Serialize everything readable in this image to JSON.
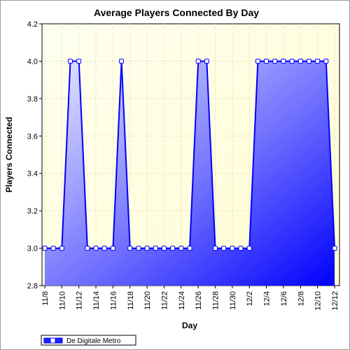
{
  "chart_data": {
    "type": "area",
    "title": "Average Players Connected By Day",
    "xlabel": "Day",
    "ylabel": "Players Connected",
    "ylim": [
      2.8,
      4.2
    ],
    "yticks": [
      "2.8",
      "3.0",
      "3.2",
      "3.4",
      "3.6",
      "3.8",
      "4.0",
      "4.2"
    ],
    "xticks": [
      "11/8",
      "11/10",
      "11/12",
      "11/14",
      "11/16",
      "11/18",
      "11/20",
      "11/22",
      "11/24",
      "11/26",
      "11/28",
      "11/30",
      "12/2",
      "12/4",
      "12/6",
      "12/8",
      "12/10",
      "12/12"
    ],
    "grid": true,
    "legend": "bottom-left",
    "categories": [
      "11/8",
      "11/9",
      "11/10",
      "11/11",
      "11/12",
      "11/13",
      "11/14",
      "11/15",
      "11/16",
      "11/17",
      "11/18",
      "11/19",
      "11/20",
      "11/21",
      "11/22",
      "11/23",
      "11/24",
      "11/25",
      "11/26",
      "11/27",
      "11/28",
      "11/29",
      "11/30",
      "12/1",
      "12/2",
      "12/3",
      "12/4",
      "12/5",
      "12/6",
      "12/7",
      "12/8",
      "12/9",
      "12/10",
      "12/11",
      "12/12"
    ],
    "series": [
      {
        "name": "De Digitale Metro",
        "color": "#0000ff",
        "values": [
          3,
          3,
          3,
          4,
          4,
          3,
          3,
          3,
          3,
          4,
          3,
          3,
          3,
          3,
          3,
          3,
          3,
          3,
          4,
          4,
          3,
          3,
          3,
          3,
          3,
          4,
          4,
          4,
          4,
          4,
          4,
          4,
          4,
          4,
          3
        ]
      }
    ]
  }
}
